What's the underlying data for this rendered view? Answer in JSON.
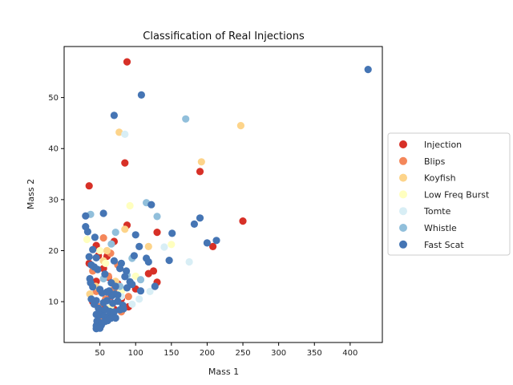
{
  "chart_data": {
    "type": "scatter",
    "title": "Classification of Real Injections",
    "xlabel": "Mass 1",
    "ylabel": "Mass 2",
    "xlim": [
      0,
      445
    ],
    "ylim": [
      2,
      60
    ],
    "xticks": [
      50,
      100,
      150,
      200,
      250,
      300,
      350,
      400
    ],
    "yticks": [
      10,
      20,
      30,
      40,
      50
    ],
    "grid": false,
    "legend_position": "right",
    "series": [
      {
        "name": "Injection",
        "color": "#d73027",
        "points": [
          [
            88,
            57
          ],
          [
            35,
            32.7
          ],
          [
            85,
            37.2
          ],
          [
            190,
            35.5
          ],
          [
            250,
            25.8
          ],
          [
            88,
            25
          ],
          [
            70,
            21.8
          ],
          [
            130,
            23.6
          ],
          [
            208,
            20.8
          ],
          [
            45,
            21
          ],
          [
            55,
            16.5
          ],
          [
            60,
            18.9
          ],
          [
            75,
            13.5
          ],
          [
            65,
            12
          ],
          [
            125,
            16
          ],
          [
            130,
            13.8
          ],
          [
            118,
            15.5
          ],
          [
            40,
            10
          ],
          [
            55,
            9.5
          ],
          [
            70,
            8.5
          ],
          [
            90,
            9
          ],
          [
            60,
            7
          ],
          [
            50,
            6.2
          ],
          [
            80,
            10.5
          ],
          [
            45,
            14
          ],
          [
            100,
            12.5
          ],
          [
            62,
            14.8
          ],
          [
            35,
            17.5
          ],
          [
            48,
            19
          ],
          [
            66,
            11.1
          ]
        ]
      },
      {
        "name": "Blips",
        "color": "#f4875a",
        "points": [
          [
            55,
            22.5
          ],
          [
            40,
            16
          ],
          [
            62,
            15
          ],
          [
            58,
            10.5
          ],
          [
            80,
            8
          ],
          [
            48,
            9
          ],
          [
            70,
            12.5
          ],
          [
            90,
            11
          ],
          [
            52,
            7.2
          ],
          [
            45,
            12
          ],
          [
            65,
            19.5
          ],
          [
            75,
            17.2
          ]
        ]
      },
      {
        "name": "Koyfish",
        "color": "#fdd48a",
        "points": [
          [
            77,
            43.2
          ],
          [
            247,
            44.5
          ],
          [
            192,
            37.4
          ],
          [
            85,
            24.2
          ],
          [
            118,
            20.8
          ],
          [
            36,
            11.5
          ],
          [
            55,
            18
          ],
          [
            60,
            20
          ],
          [
            72,
            14
          ],
          [
            44,
            13
          ]
        ]
      },
      {
        "name": "Low Freq Burst",
        "color": "#ffffbf",
        "points": [
          [
            92,
            28.8
          ],
          [
            150,
            21.2
          ],
          [
            32,
            22.2
          ],
          [
            50,
            20
          ],
          [
            80,
            12
          ],
          [
            65,
            9
          ],
          [
            100,
            15
          ],
          [
            58,
            17.5
          ]
        ]
      },
      {
        "name": "Tomte",
        "color": "#d8eef5",
        "points": [
          [
            85,
            42.8
          ],
          [
            175,
            17.8
          ],
          [
            140,
            20.7
          ],
          [
            105,
            10.5
          ],
          [
            95,
            9.5
          ],
          [
            120,
            12
          ],
          [
            80,
            11
          ],
          [
            60,
            10
          ]
        ]
      },
      {
        "name": "Whistle",
        "color": "#91bfdb",
        "points": [
          [
            170,
            45.8
          ],
          [
            115,
            29.4
          ],
          [
            130,
            26.7
          ],
          [
            37,
            27.1
          ],
          [
            72,
            23.6
          ],
          [
            66,
            21.3
          ],
          [
            107,
            14.3
          ],
          [
            95,
            18.5
          ],
          [
            88,
            15.2
          ],
          [
            55,
            14.5
          ],
          [
            78,
            13
          ]
        ]
      },
      {
        "name": "Fast Scat",
        "color": "#4575b4",
        "points": [
          [
            425,
            55.5
          ],
          [
            108,
            50.5
          ],
          [
            70,
            46.5
          ],
          [
            55,
            27.3
          ],
          [
            30,
            26.8
          ],
          [
            30,
            24.7
          ],
          [
            122,
            29
          ],
          [
            190,
            26.4
          ],
          [
            182,
            25.2
          ],
          [
            213,
            22
          ],
          [
            200,
            21.5
          ],
          [
            151,
            23.4
          ],
          [
            33,
            23.7
          ],
          [
            43,
            22.6
          ],
          [
            100,
            23.1
          ],
          [
            40,
            20.2
          ],
          [
            105,
            20.8
          ],
          [
            45,
            18.6
          ],
          [
            98,
            19
          ],
          [
            115,
            18.5
          ],
          [
            118,
            17.8
          ],
          [
            147,
            18.1
          ],
          [
            70,
            18
          ],
          [
            78,
            16.5
          ],
          [
            80,
            17.5
          ],
          [
            87,
            16
          ],
          [
            35,
            18.8
          ],
          [
            38,
            17.2
          ],
          [
            42,
            16.8
          ],
          [
            57,
            15.4
          ],
          [
            92,
            13.9
          ],
          [
            127,
            13
          ],
          [
            107,
            12.1
          ],
          [
            36,
            14.5
          ],
          [
            37,
            13.7
          ],
          [
            40,
            12.9
          ],
          [
            50,
            12.4
          ],
          [
            63,
            12.1
          ],
          [
            66,
            13.7
          ],
          [
            72,
            13
          ],
          [
            85,
            14.9
          ],
          [
            38,
            10.5
          ],
          [
            45,
            10.2
          ],
          [
            55,
            9.8
          ],
          [
            60,
            10.2
          ],
          [
            68,
            9.7
          ],
          [
            75,
            10.1
          ],
          [
            82,
            9.3
          ],
          [
            42,
            9.5
          ],
          [
            48,
            8.7
          ],
          [
            52,
            8.2
          ],
          [
            58,
            8.5
          ],
          [
            64,
            8.1
          ],
          [
            70,
            8
          ],
          [
            78,
            8.4
          ],
          [
            83,
            8.6
          ],
          [
            45,
            7.5
          ],
          [
            50,
            7.4
          ],
          [
            56,
            7.2
          ],
          [
            62,
            7
          ],
          [
            66,
            6.8
          ],
          [
            72,
            6.8
          ],
          [
            46,
            6.2
          ],
          [
            49,
            6
          ],
          [
            53,
            5.8
          ],
          [
            57,
            6.1
          ],
          [
            61,
            6.3
          ],
          [
            45,
            5.3
          ],
          [
            48,
            5.1
          ],
          [
            52,
            5.4
          ],
          [
            45,
            4.7
          ],
          [
            47,
            4.9
          ],
          [
            50,
            4.8
          ],
          [
            67,
            11.2
          ],
          [
            71,
            11.5
          ],
          [
            75,
            11.3
          ],
          [
            53,
            11.7
          ],
          [
            60,
            11.9
          ],
          [
            88,
            12.7
          ],
          [
            95,
            13.4
          ],
          [
            47,
            16.3
          ]
        ]
      }
    ]
  }
}
